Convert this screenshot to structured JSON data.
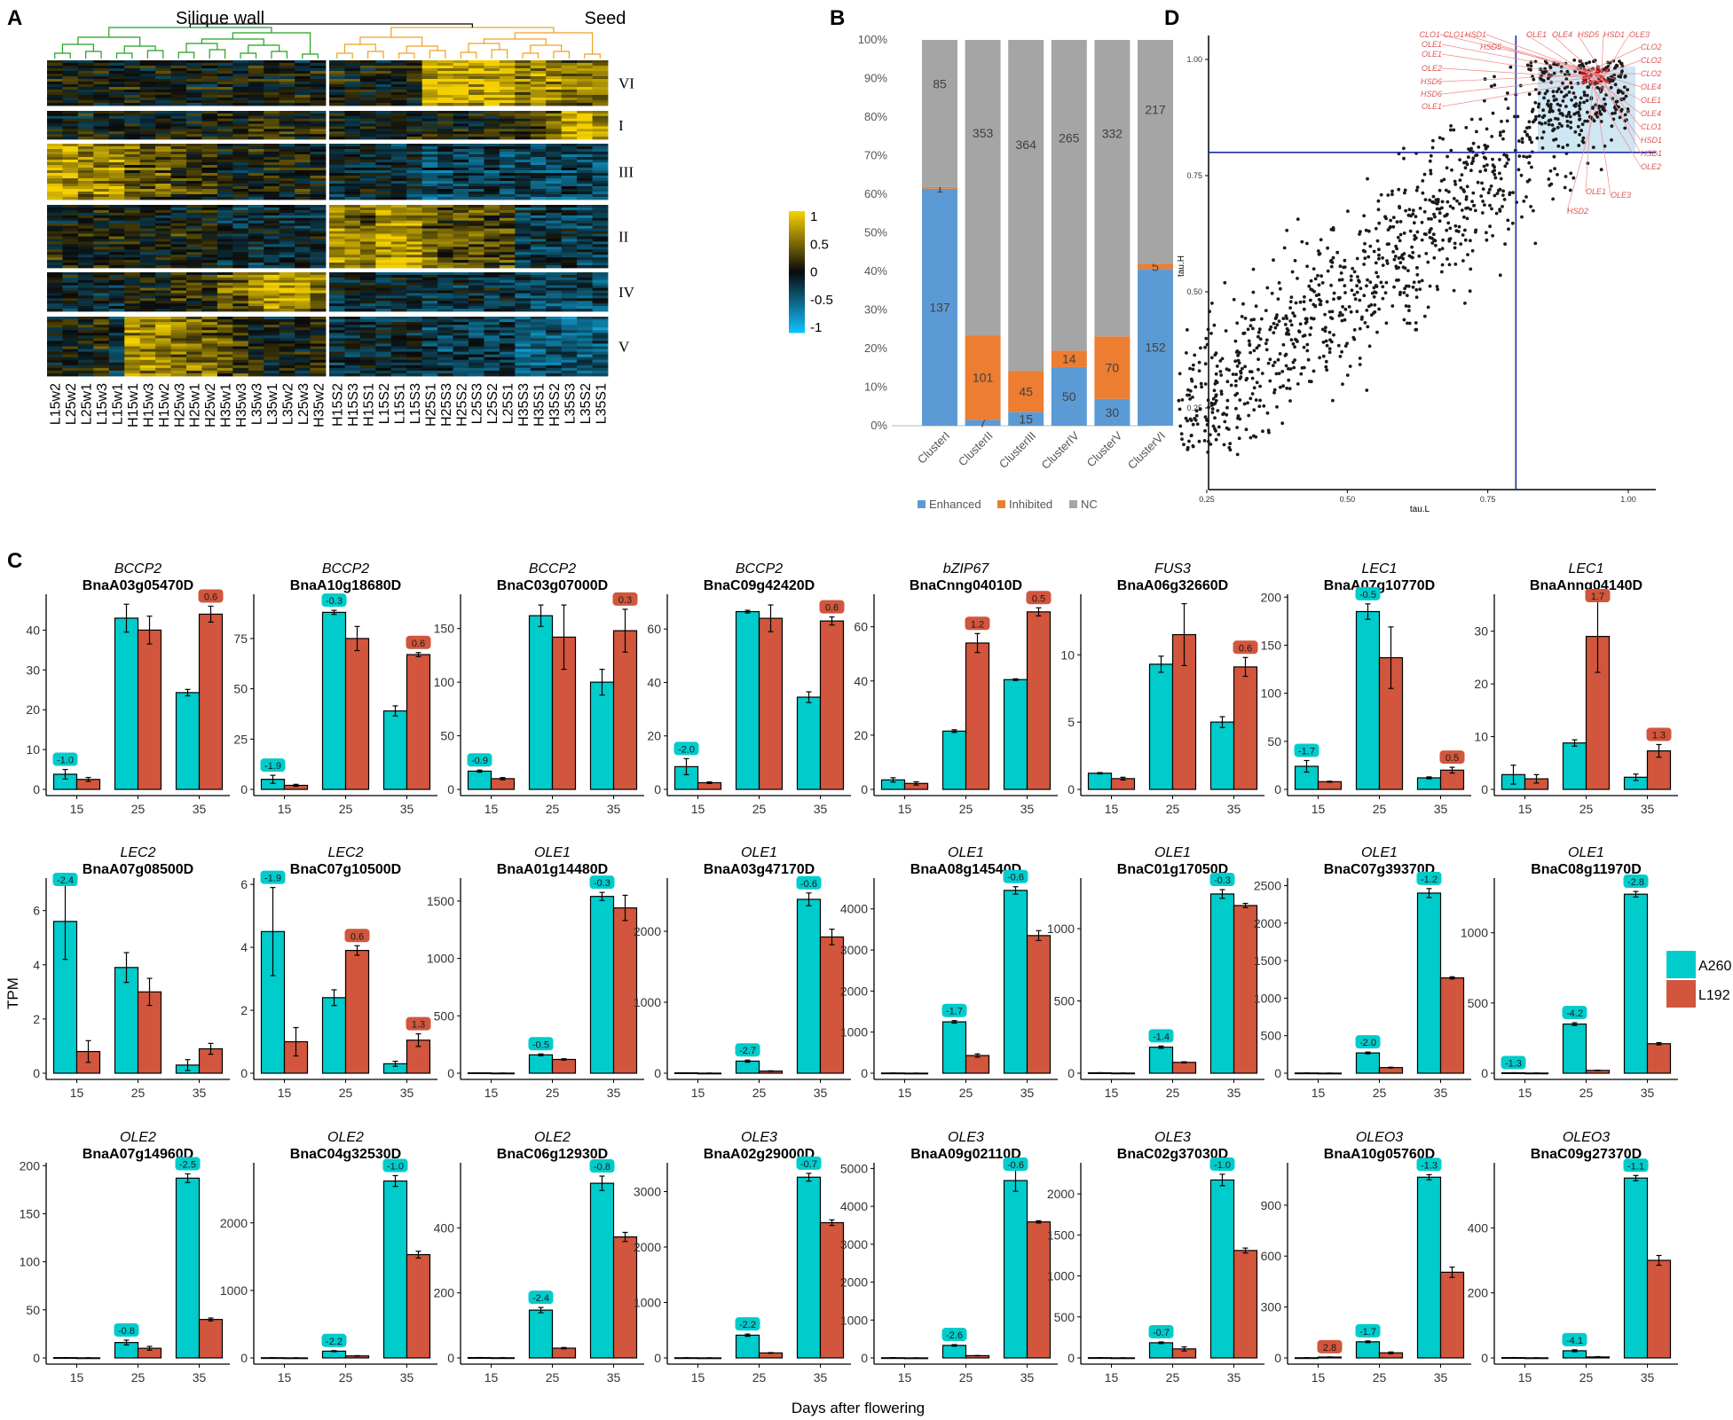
{
  "panel_labels": {
    "a": "A",
    "b": "B",
    "c": "C",
    "d": "D"
  },
  "heatmap": {
    "group_left": "Silique wall",
    "group_right": "Seed",
    "clusters": [
      "VI",
      "I",
      "III",
      "II",
      "IV",
      "V"
    ],
    "columns_left": [
      "L15w2",
      "L25w2",
      "L25w1",
      "L15w3",
      "L15w1",
      "H15w1",
      "H15w3",
      "H15w2",
      "H25w3",
      "H25w1",
      "H25w2",
      "H35w1",
      "H35w3",
      "L35w3",
      "L35w1",
      "L35w2",
      "L25w3",
      "H35w2"
    ],
    "columns_right": [
      "H15S2",
      "H15S3",
      "H15S1",
      "L15S2",
      "L15S1",
      "L15S3",
      "H25S1",
      "H25S3",
      "H25S2",
      "L25S3",
      "L25S2",
      "L25S1",
      "H35S3",
      "H35S1",
      "H35S2",
      "L35S3",
      "L35S2",
      "L35S1"
    ],
    "legend_ticks": [
      "1",
      "0.5",
      "0",
      "-0.5",
      "-1"
    ],
    "colors": {
      "high": "#f5d000",
      "mid": "#0a0a0a",
      "low": "#10bfff"
    }
  },
  "stacked": {
    "categories": [
      "ClusterI",
      "ClusterII",
      "ClusterIII",
      "ClusterIV",
      "ClusterV",
      "ClusterVI"
    ],
    "series": [
      {
        "name": "Enhanced",
        "color": "#5b9bd5",
        "values": [
          137,
          7,
          15,
          50,
          30,
          152
        ]
      },
      {
        "name": "Inhibited",
        "color": "#ed7d31",
        "values": [
          1,
          101,
          45,
          14,
          70,
          5
        ]
      },
      {
        "name": "NC",
        "color": "#a5a5a5",
        "values": [
          85,
          353,
          364,
          265,
          332,
          217
        ]
      }
    ],
    "yticks": [
      "0%",
      "10%",
      "20%",
      "30%",
      "40%",
      "50%",
      "60%",
      "70%",
      "80%",
      "90%",
      "100%"
    ]
  },
  "scatter": {
    "xlabel": "tau.L",
    "ylabel": "tau.H",
    "xticks": [
      "0.25",
      "0.50",
      "0.75",
      "1.00"
    ],
    "yticks": [
      "0.25",
      "0.50",
      "0.75",
      "1.00"
    ],
    "threshold": 0.8,
    "gene_labels_left": [
      "CLO1",
      "CLO1",
      "HSD1",
      "OLE1",
      "OLE1",
      "HSD5",
      "OLE2",
      "HSD6",
      "HSD6",
      "OLE1"
    ],
    "gene_labels_top": [
      "OLE1",
      "OLE4",
      "HSD5",
      "HSD1",
      "OLE3"
    ],
    "gene_labels_right": [
      "CLO2",
      "CLO2",
      "CLO2",
      "OLE4",
      "OLE1",
      "OLE4",
      "CLO1",
      "HSD1",
      "HSD1",
      "OLE2"
    ],
    "gene_labels_bottom": [
      "OLE1",
      "OLE3",
      "HSD2"
    ]
  },
  "bars": {
    "xlabel": "Days after flowering",
    "ylabel": "TPM",
    "days": [
      "15",
      "25",
      "35"
    ],
    "legend": [
      {
        "name": "A260",
        "color": "#00cccc"
      },
      {
        "name": "L192",
        "color": "#d1563d"
      }
    ],
    "genes": [
      {
        "gene": "BCCP2",
        "id": "BnaA03g05470D",
        "a": [
          3.8,
          43,
          24.3
        ],
        "b": [
          2.5,
          40,
          44
        ],
        "ea": [
          1.2,
          3.5,
          0.8
        ],
        "eb": [
          0.5,
          3.5,
          2
        ],
        "ticks": [
          0,
          10,
          20,
          30,
          40
        ],
        "ymax": 49,
        "labels": [
          [
            "-1.0",
            "a",
            0
          ],
          [
            "0.6",
            "b",
            2
          ]
        ]
      },
      {
        "gene": "BCCP2",
        "id": "BnaA10g18680D",
        "a": [
          5,
          88,
          39
        ],
        "b": [
          2,
          75,
          67
        ],
        "ea": [
          2,
          1,
          2.5
        ],
        "eb": [
          0.5,
          6,
          1
        ],
        "ticks": [
          0,
          25,
          50,
          75
        ],
        "ymax": 97,
        "labels": [
          [
            "-1.9",
            "a",
            0
          ],
          [
            "-0.3",
            "a",
            1
          ],
          [
            "0.6",
            "b",
            2
          ]
        ]
      },
      {
        "gene": "BCCP2",
        "id": "BnaC03g07000D",
        "a": [
          17,
          162,
          100
        ],
        "b": [
          10,
          142,
          148
        ],
        "ea": [
          1,
          10,
          12
        ],
        "eb": [
          1,
          30,
          20
        ],
        "ticks": [
          0,
          50,
          100,
          150
        ],
        "ymax": 182,
        "labels": [
          [
            "-0.9",
            "a",
            0
          ],
          [
            "0.3",
            "b",
            2
          ]
        ]
      },
      {
        "gene": "BCCP2",
        "id": "BnaC09g42420D",
        "a": [
          8.5,
          66.5,
          34.5
        ],
        "b": [
          2.5,
          64,
          63
        ],
        "ea": [
          3,
          0.5,
          2
        ],
        "eb": [
          0.3,
          5,
          1.5
        ],
        "ticks": [
          0,
          20,
          40,
          60
        ],
        "ymax": 73,
        "labels": [
          [
            "-2.0",
            "a",
            0
          ],
          [
            "0.6",
            "b",
            2
          ]
        ]
      },
      {
        "gene": "bZIP67",
        "id": "BnaCnng04010D",
        "a": [
          3.5,
          21.5,
          40.5
        ],
        "b": [
          2.2,
          54,
          65.5
        ],
        "ea": [
          0.8,
          0.5,
          0.3
        ],
        "eb": [
          0.6,
          3.5,
          1.5
        ],
        "ticks": [
          0,
          20,
          40,
          60
        ],
        "ymax": 72,
        "labels": [
          [
            "1.2",
            "b",
            1
          ],
          [
            "0.5",
            "b",
            2
          ]
        ]
      },
      {
        "gene": "FUS3",
        "id": "BnaA06g32660D",
        "a": [
          1.2,
          9.3,
          5
        ],
        "b": [
          0.8,
          11.5,
          9.1
        ],
        "ea": [
          0.05,
          0.6,
          0.4
        ],
        "eb": [
          0.1,
          2.3,
          0.7
        ],
        "ticks": [
          0,
          5,
          10
        ],
        "ymax": 14.5,
        "labels": [
          [
            "0.6",
            "b",
            2
          ]
        ]
      },
      {
        "gene": "LEC1",
        "id": "BnaA07g10770D",
        "a": [
          24,
          185,
          12
        ],
        "b": [
          8,
          137,
          20
        ],
        "ea": [
          6,
          8,
          1
        ],
        "eb": [
          0.5,
          32,
          3
        ],
        "ticks": [
          0,
          50,
          100,
          150,
          200
        ],
        "ymax": 203,
        "labels": [
          [
            "-1.7",
            "a",
            0
          ],
          [
            "-0.5",
            "a",
            1
          ],
          [
            "0.5",
            "b",
            2
          ]
        ]
      },
      {
        "gene": "LEC1",
        "id": "BnaAnng04140D",
        "a": [
          2.8,
          8.8,
          2.3
        ],
        "b": [
          2,
          29,
          7.3
        ],
        "ea": [
          1.8,
          0.6,
          0.6
        ],
        "eb": [
          0.8,
          6.8,
          1.2
        ],
        "ticks": [
          0,
          10,
          20,
          30
        ],
        "ymax": 37,
        "labels": [
          [
            "1.7",
            "b",
            1
          ],
          [
            "1.3",
            "b",
            2
          ]
        ]
      },
      {
        "gene": "LEC2",
        "id": "BnaA07g08500D",
        "a": [
          5.6,
          3.9,
          0.3
        ],
        "b": [
          0.8,
          3,
          0.9
        ],
        "ea": [
          1.4,
          0.55,
          0.2
        ],
        "eb": [
          0.4,
          0.5,
          0.2
        ],
        "ticks": [
          0,
          2,
          4,
          6
        ],
        "ymax": 7.2,
        "labels": [
          [
            "-2.4",
            "a",
            0
          ]
        ]
      },
      {
        "gene": "LEC2",
        "id": "BnaC07g10500D",
        "a": [
          4.5,
          2.4,
          0.3
        ],
        "b": [
          1,
          3.9,
          1.05
        ],
        "ea": [
          1.4,
          0.25,
          0.08
        ],
        "eb": [
          0.45,
          0.15,
          0.2
        ],
        "ticks": [
          0,
          2,
          4,
          6
        ],
        "ymax": 6.2,
        "labels": [
          [
            "-1.9",
            "a",
            0
          ],
          [
            "0.6",
            "b",
            1
          ],
          [
            "1.3",
            "b",
            2
          ]
        ]
      },
      {
        "gene": "OLE1",
        "id": "BnaA01g14480D",
        "a": [
          3,
          160,
          1540
        ],
        "b": [
          1,
          120,
          1440
        ],
        "ea": [
          0.5,
          8,
          35
        ],
        "eb": [
          0.3,
          6,
          110
        ],
        "ticks": [
          0,
          500,
          1000,
          1500
        ],
        "ymax": 1700,
        "labels": [
          [
            "-0.5",
            "a",
            1
          ],
          [
            "-0.3",
            "a",
            2
          ]
        ]
      },
      {
        "gene": "OLE1",
        "id": "BnaA03g47170D",
        "a": [
          5,
          170,
          2450
        ],
        "b": [
          1,
          30,
          1920
        ],
        "ea": [
          1,
          15,
          90
        ],
        "eb": [
          0.3,
          4,
          110
        ],
        "ticks": [
          0,
          1000,
          2000
        ],
        "ymax": 2750,
        "labels": [
          [
            "-2.7",
            "a",
            1
          ],
          [
            "-0.6",
            "a",
            2
          ]
        ]
      },
      {
        "gene": "OLE1",
        "id": "BnaA08g14540D",
        "a": [
          5,
          1250,
          4450
        ],
        "b": [
          1,
          430,
          3350
        ],
        "ea": [
          1,
          30,
          90
        ],
        "eb": [
          0.3,
          40,
          120
        ],
        "ticks": [
          0,
          1000,
          2000,
          3000,
          4000
        ],
        "ymax": 4750,
        "labels": [
          [
            "-1.7",
            "a",
            1
          ],
          [
            "-0.6",
            "a",
            2
          ]
        ]
      },
      {
        "gene": "OLE1",
        "id": "BnaC01g17050D",
        "a": [
          3,
          180,
          1240
        ],
        "b": [
          1,
          75,
          1160
        ],
        "ea": [
          0.5,
          8,
          30
        ],
        "eb": [
          0.3,
          4,
          15
        ],
        "ticks": [
          0,
          500,
          1000
        ],
        "ymax": 1350,
        "labels": [
          [
            "-1.4",
            "a",
            1
          ],
          [
            "-0.3",
            "a",
            2
          ]
        ]
      },
      {
        "gene": "OLE1",
        "id": "BnaC07g39370D",
        "a": [
          3,
          270,
          2400
        ],
        "b": [
          1,
          75,
          1270
        ],
        "ea": [
          0.5,
          12,
          60
        ],
        "eb": [
          0.3,
          5,
          15
        ],
        "ticks": [
          0,
          500,
          1000,
          1500,
          2000,
          2500
        ],
        "ymax": 2600,
        "labels": [
          [
            "-2.0",
            "a",
            1
          ],
          [
            "-1.2",
            "a",
            2
          ]
        ]
      },
      {
        "gene": "OLE1",
        "id": "BnaC08g11970D",
        "a": [
          3,
          350,
          1275
        ],
        "b": [
          1,
          20,
          210
        ],
        "ea": [
          0.5,
          10,
          20
        ],
        "eb": [
          0.3,
          2,
          8
        ],
        "ticks": [
          0,
          500,
          1000
        ],
        "ymax": 1390,
        "labels": [
          [
            "-1.3",
            "a",
            0
          ],
          [
            "-4.2",
            "a",
            1
          ],
          [
            "-2.8",
            "a",
            2
          ]
        ]
      },
      {
        "gene": "OLE2",
        "id": "BnaA07g14960D",
        "a": [
          0.3,
          16,
          187
        ],
        "b": [
          0.1,
          10,
          40
        ],
        "ea": [
          0.05,
          2.5,
          4.5
        ],
        "eb": [
          0.05,
          2,
          1.5
        ],
        "ticks": [
          0,
          50,
          100,
          150,
          200
        ],
        "ymax": 203,
        "labels": [
          [
            "-0.8",
            "a",
            1
          ],
          [
            "-2.5",
            "a",
            2
          ]
        ]
      },
      {
        "gene": "OLE2",
        "id": "BnaC04g32530D",
        "a": [
          3,
          100,
          2620
        ],
        "b": [
          1,
          30,
          1530
        ],
        "ea": [
          0.5,
          8,
          80
        ],
        "eb": [
          0.3,
          4,
          50
        ],
        "ticks": [
          0,
          1000,
          2000
        ],
        "ymax": 2890,
        "labels": [
          [
            "-2.2",
            "a",
            1
          ],
          [
            "-1.0",
            "a",
            2
          ]
        ]
      },
      {
        "gene": "OLE2",
        "id": "BnaC06g12930D",
        "a": [
          1,
          147,
          537
        ],
        "b": [
          0.5,
          30,
          372
        ],
        "ea": [
          0.3,
          8,
          22
        ],
        "eb": [
          0.2,
          2,
          14
        ],
        "ticks": [
          0,
          200,
          400
        ],
        "ymax": 600,
        "labels": [
          [
            "-2.4",
            "a",
            1
          ],
          [
            "-0.8",
            "a",
            2
          ]
        ]
      },
      {
        "gene": "OLE3",
        "id": "BnaA02g29000D",
        "a": [
          3,
          410,
          3260
        ],
        "b": [
          1,
          90,
          2440
        ],
        "ea": [
          0.5,
          20,
          70
        ],
        "eb": [
          0.3,
          6,
          50
        ],
        "ticks": [
          0,
          1000,
          2000,
          3000
        ],
        "ymax": 3520,
        "labels": [
          [
            "-2.2",
            "a",
            1
          ],
          [
            "-0.7",
            "a",
            2
          ]
        ]
      },
      {
        "gene": "OLE3",
        "id": "BnaA09g02110D",
        "a": [
          5,
          330,
          4680
        ],
        "b": [
          1,
          60,
          3590
        ],
        "ea": [
          1,
          20,
          280
        ],
        "eb": [
          0.3,
          4,
          30
        ],
        "ticks": [
          0,
          1000,
          2000,
          3000,
          4000,
          5000
        ],
        "ymax": 5150,
        "labels": [
          [
            "-2.6",
            "a",
            1
          ],
          [
            "-0.6",
            "a",
            2
          ]
        ]
      },
      {
        "gene": "OLE3",
        "id": "BnaC02g37030D",
        "a": [
          3,
          185,
          2170
        ],
        "b": [
          1,
          110,
          1310
        ],
        "ea": [
          0.5,
          10,
          70
        ],
        "eb": [
          0.3,
          25,
          30
        ],
        "ticks": [
          0,
          500,
          1000,
          1500,
          2000
        ],
        "ymax": 2380,
        "labels": [
          [
            "-0.7",
            "a",
            1
          ],
          [
            "-1.0",
            "a",
            2
          ]
        ]
      },
      {
        "gene": "OLEO3",
        "id": "BnaA10g05760D",
        "a": [
          1,
          95,
          1065
        ],
        "b": [
          5,
          30,
          505
        ],
        "ea": [
          0.3,
          5,
          15
        ],
        "eb": [
          1,
          5,
          30
        ],
        "ticks": [
          0,
          300,
          600,
          900
        ],
        "ymax": 1150,
        "labels": [
          [
            "2.8",
            "b",
            0
          ],
          [
            "-1.7",
            "a",
            1
          ],
          [
            "-1.3",
            "a",
            2
          ]
        ]
      },
      {
        "gene": "OLEO3",
        "id": "BnaC09g27370D",
        "a": [
          1,
          22,
          553
        ],
        "b": [
          0.3,
          3,
          300
        ],
        "ea": [
          0.2,
          3,
          8
        ],
        "eb": [
          0.1,
          1,
          15
        ],
        "ticks": [
          0,
          200,
          400
        ],
        "ymax": 600,
        "labels": [
          [
            "-4.1",
            "a",
            1
          ],
          [
            "-1.1",
            "a",
            2
          ]
        ]
      }
    ]
  }
}
